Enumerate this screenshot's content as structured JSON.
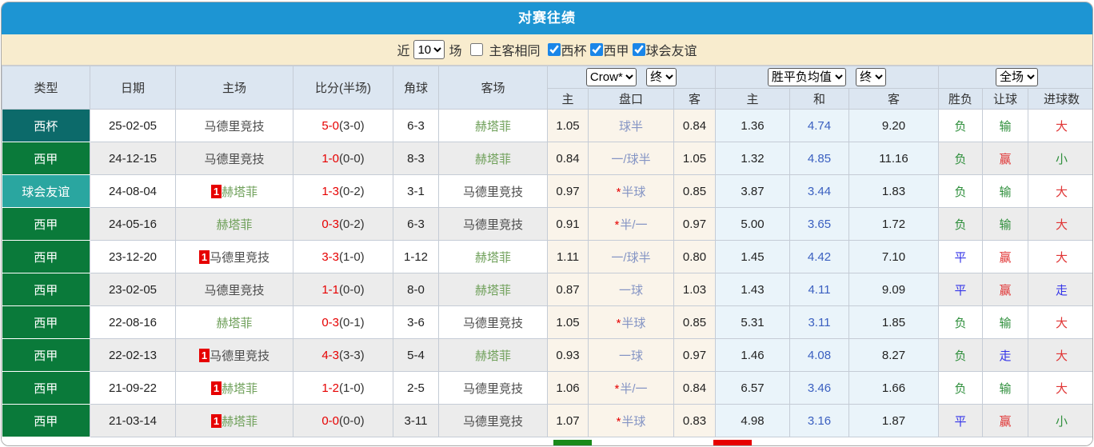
{
  "title": "对赛往绩",
  "colors": {
    "title_bar": "#1d95d3",
    "filter_bar": "#f8ecce",
    "header_bg": "#dce6f1",
    "type_cup": "#0c6a6a",
    "type_liga": "#0a7a3a",
    "type_friendly": "#2aa6a0",
    "score_red": "#e60000",
    "team_getafe_green": "#6fa05a",
    "team_dark": "#4a4a4a",
    "handicap_text": "#8494c4",
    "avg_draw_text": "#3a5fc0",
    "result_green": "#2f8f3c",
    "result_red": "#e03434",
    "result_blue": "#3535e8",
    "legend_green": "#1a8a1a",
    "legend_red": "#e60000"
  },
  "filter": {
    "near_label": "近",
    "count_value": "10",
    "matches_label": "场",
    "same_venue_label": "主客相同",
    "same_venue_checked": false,
    "leagues": [
      {
        "label": "西杯",
        "checked": true
      },
      {
        "label": "西甲",
        "checked": true
      },
      {
        "label": "球会友谊",
        "checked": true
      }
    ]
  },
  "table": {
    "main_headers": [
      "类型",
      "日期",
      "主场",
      "比分(半场)",
      "角球",
      "客场"
    ],
    "selects": {
      "company": "Crow*",
      "company_state": "终",
      "avg": "胜平负均值",
      "avg_state": "终",
      "scope": "全场"
    },
    "sub_headers": [
      "主",
      "盘口",
      "客",
      "主",
      "和",
      "客",
      "胜负",
      "让球",
      "进球数"
    ],
    "rows": [
      {
        "type": "西杯",
        "type_key": "cup",
        "date": "25-02-05",
        "home": "马德里竞技",
        "home_color": "dark",
        "home_badge": "",
        "score": "5-0",
        "half": "(3-0)",
        "corners": "6-3",
        "away": "赫塔菲",
        "away_color": "green",
        "odds_home": "1.05",
        "handicap": "球半",
        "handicap_star": false,
        "odds_away": "0.84",
        "avg_home": "1.36",
        "avg_draw": "4.74",
        "avg_away": "9.20",
        "res_wl": {
          "text": "负",
          "color": "green"
        },
        "res_handicap": {
          "text": "输",
          "color": "green"
        },
        "res_goals": {
          "text": "大",
          "color": "red"
        }
      },
      {
        "type": "西甲",
        "type_key": "liga",
        "date": "24-12-15",
        "home": "马德里竞技",
        "home_color": "dark",
        "home_badge": "",
        "score": "1-0",
        "half": "(0-0)",
        "corners": "8-3",
        "away": "赫塔菲",
        "away_color": "green",
        "odds_home": "0.84",
        "handicap": "一/球半",
        "handicap_star": false,
        "odds_away": "1.05",
        "avg_home": "1.32",
        "avg_draw": "4.85",
        "avg_away": "11.16",
        "res_wl": {
          "text": "负",
          "color": "green"
        },
        "res_handicap": {
          "text": "赢",
          "color": "red"
        },
        "res_goals": {
          "text": "小",
          "color": "green"
        }
      },
      {
        "type": "球会友谊",
        "type_key": "friendly",
        "date": "24-08-04",
        "home": "赫塔菲",
        "home_color": "green",
        "home_badge": "1",
        "score": "1-3",
        "half": "(0-2)",
        "corners": "3-1",
        "away": "马德里竞技",
        "away_color": "dark",
        "odds_home": "0.97",
        "handicap": "半球",
        "handicap_star": true,
        "odds_away": "0.85",
        "avg_home": "3.87",
        "avg_draw": "3.44",
        "avg_away": "1.83",
        "res_wl": {
          "text": "负",
          "color": "green"
        },
        "res_handicap": {
          "text": "输",
          "color": "green"
        },
        "res_goals": {
          "text": "大",
          "color": "red"
        }
      },
      {
        "type": "西甲",
        "type_key": "liga",
        "date": "24-05-16",
        "home": "赫塔菲",
        "home_color": "green",
        "home_badge": "",
        "score": "0-3",
        "half": "(0-2)",
        "corners": "6-3",
        "away": "马德里竞技",
        "away_color": "dark",
        "odds_home": "0.91",
        "handicap": "半/一",
        "handicap_star": true,
        "odds_away": "0.97",
        "avg_home": "5.00",
        "avg_draw": "3.65",
        "avg_away": "1.72",
        "res_wl": {
          "text": "负",
          "color": "green"
        },
        "res_handicap": {
          "text": "输",
          "color": "green"
        },
        "res_goals": {
          "text": "大",
          "color": "red"
        }
      },
      {
        "type": "西甲",
        "type_key": "liga",
        "date": "23-12-20",
        "home": "马德里竞技",
        "home_color": "dark",
        "home_badge": "1",
        "score": "3-3",
        "half": "(1-0)",
        "corners": "1-12",
        "away": "赫塔菲",
        "away_color": "green",
        "odds_home": "1.11",
        "handicap": "一/球半",
        "handicap_star": false,
        "odds_away": "0.80",
        "avg_home": "1.45",
        "avg_draw": "4.42",
        "avg_away": "7.10",
        "res_wl": {
          "text": "平",
          "color": "blue"
        },
        "res_handicap": {
          "text": "赢",
          "color": "red"
        },
        "res_goals": {
          "text": "大",
          "color": "red"
        }
      },
      {
        "type": "西甲",
        "type_key": "liga",
        "date": "23-02-05",
        "home": "马德里竞技",
        "home_color": "dark",
        "home_badge": "",
        "score": "1-1",
        "half": "(0-0)",
        "corners": "8-0",
        "away": "赫塔菲",
        "away_color": "green",
        "odds_home": "0.87",
        "handicap": "一球",
        "handicap_star": false,
        "odds_away": "1.03",
        "avg_home": "1.43",
        "avg_draw": "4.11",
        "avg_away": "9.09",
        "res_wl": {
          "text": "平",
          "color": "blue"
        },
        "res_handicap": {
          "text": "赢",
          "color": "red"
        },
        "res_goals": {
          "text": "走",
          "color": "blue"
        }
      },
      {
        "type": "西甲",
        "type_key": "liga",
        "date": "22-08-16",
        "home": "赫塔菲",
        "home_color": "green",
        "home_badge": "",
        "score": "0-3",
        "half": "(0-1)",
        "corners": "3-6",
        "away": "马德里竞技",
        "away_color": "dark",
        "odds_home": "1.05",
        "handicap": "半球",
        "handicap_star": true,
        "odds_away": "0.85",
        "avg_home": "5.31",
        "avg_draw": "3.11",
        "avg_away": "1.85",
        "res_wl": {
          "text": "负",
          "color": "green"
        },
        "res_handicap": {
          "text": "输",
          "color": "green"
        },
        "res_goals": {
          "text": "大",
          "color": "red"
        }
      },
      {
        "type": "西甲",
        "type_key": "liga",
        "date": "22-02-13",
        "home": "马德里竞技",
        "home_color": "dark",
        "home_badge": "1",
        "score": "4-3",
        "half": "(3-3)",
        "corners": "5-4",
        "away": "赫塔菲",
        "away_color": "green",
        "odds_home": "0.93",
        "handicap": "一球",
        "handicap_star": false,
        "odds_away": "0.97",
        "avg_home": "1.46",
        "avg_draw": "4.08",
        "avg_away": "8.27",
        "res_wl": {
          "text": "负",
          "color": "green"
        },
        "res_handicap": {
          "text": "走",
          "color": "blue"
        },
        "res_goals": {
          "text": "大",
          "color": "red"
        }
      },
      {
        "type": "西甲",
        "type_key": "liga",
        "date": "21-09-22",
        "home": "赫塔菲",
        "home_color": "green",
        "home_badge": "1",
        "score": "1-2",
        "half": "(1-0)",
        "corners": "2-5",
        "away": "马德里竞技",
        "away_color": "dark",
        "odds_home": "1.06",
        "handicap": "半/一",
        "handicap_star": true,
        "odds_away": "0.84",
        "avg_home": "6.57",
        "avg_draw": "3.46",
        "avg_away": "1.66",
        "res_wl": {
          "text": "负",
          "color": "green"
        },
        "res_handicap": {
          "text": "输",
          "color": "green"
        },
        "res_goals": {
          "text": "大",
          "color": "red"
        }
      },
      {
        "type": "西甲",
        "type_key": "liga",
        "date": "21-03-14",
        "home": "赫塔菲",
        "home_color": "green",
        "home_badge": "1",
        "score": "0-0",
        "half": "(0-0)",
        "corners": "3-11",
        "away": "马德里竞技",
        "away_color": "dark",
        "odds_home": "1.07",
        "handicap": "半球",
        "handicap_star": true,
        "odds_away": "0.83",
        "avg_home": "4.98",
        "avg_draw": "3.16",
        "avg_away": "1.87",
        "res_wl": {
          "text": "平",
          "color": "blue"
        },
        "res_handicap": {
          "text": "赢",
          "color": "red"
        },
        "res_goals": {
          "text": "小",
          "color": "green"
        }
      }
    ]
  }
}
